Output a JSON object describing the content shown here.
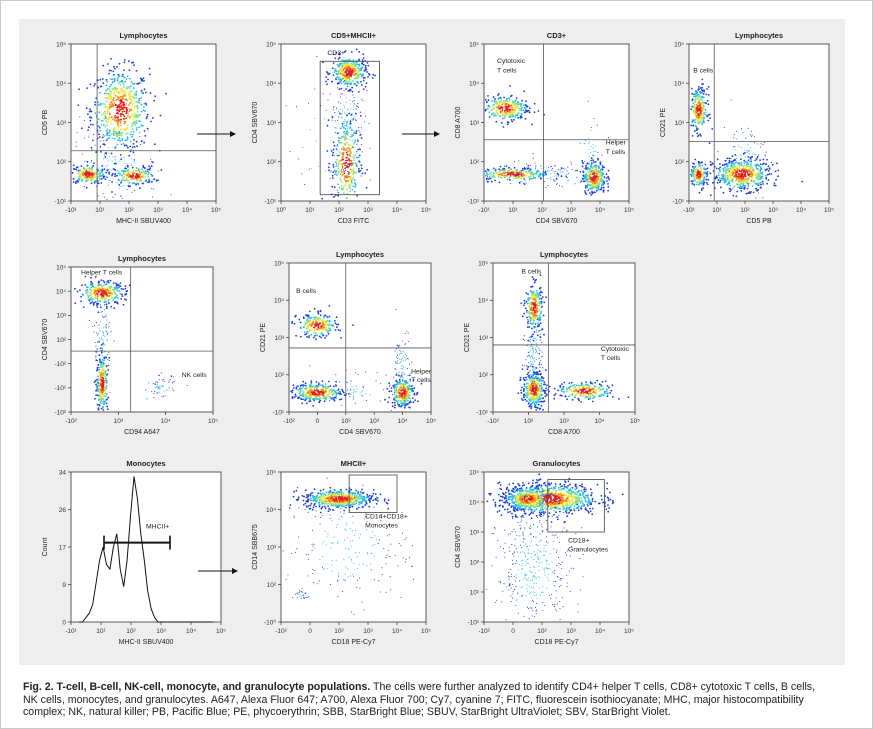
{
  "caption": {
    "label": "Fig. 2. T-cell, B-cell, NK-cell, monocyte, and granulocyte populations.",
    "text": " The cells were further analyzed to identify CD4+ helper T cells, CD8+ cytotoxic T cells, B cells, NK cells, monocytes, and granulocytes. A647, Alexa Fluor 647; A700, Alexa Fluor 700; Cy7, cyanine 7; FITC, fluorescein isothiocyanate; MHC, major histocompatibility complex; NK, natural killer; PB, Pacific Blue; PE, phycoerythrin; SBB, StarBright Blue; SBUV, StarBright UltraViolet; SBV, StarBright Violet."
  },
  "palette": [
    "#1a3fd6",
    "#22b8f0",
    "#7be38a",
    "#f6e43a",
    "#f08a1c",
    "#e3201c"
  ],
  "panels": [
    {
      "id": "p1",
      "title": "Lymphocytes",
      "xlabel": "MHC-II SBUV400",
      "ylabel": "CD5 PB",
      "xticks": [
        "-10¹",
        "10¹",
        "10²",
        "10³",
        "10⁴",
        "10⁵"
      ],
      "yticks": [
        "-10¹",
        "10²",
        "10³",
        "10⁴",
        "10⁵"
      ],
      "gates": [
        {
          "type": "vline",
          "v": 0.18
        },
        {
          "type": "hline",
          "v": 0.32
        }
      ],
      "populations": [
        {
          "cx": 0.34,
          "cy": 0.58,
          "sx": 0.1,
          "sy": 0.13,
          "n": 600
        },
        {
          "cx": 0.12,
          "cy": 0.17,
          "sx": 0.06,
          "sy": 0.03,
          "n": 200
        },
        {
          "cx": 0.44,
          "cy": 0.16,
          "sx": 0.07,
          "sy": 0.03,
          "n": 180
        },
        {
          "cx": 0.3,
          "cy": 0.2,
          "sx": 0.15,
          "sy": 0.15,
          "n": 160,
          "sparse": true
        }
      ],
      "labels": []
    },
    {
      "id": "p2",
      "title": "CD5+MHCII+",
      "xlabel": "CD3 FITC",
      "ylabel": "CD4 SBV670",
      "xticks": [
        "10⁰",
        "10¹",
        "10²",
        "10³",
        "10⁴",
        "10⁵"
      ],
      "yticks": [
        "-10¹",
        "10²",
        "10³",
        "10⁴",
        "10⁵"
      ],
      "gates": [
        {
          "type": "rect",
          "x0": 0.27,
          "x1": 0.68,
          "y0": 0.04,
          "y1": 0.89
        }
      ],
      "populations": [
        {
          "cx": 0.47,
          "cy": 0.82,
          "sx": 0.06,
          "sy": 0.05,
          "n": 350
        },
        {
          "cx": 0.45,
          "cy": 0.24,
          "sx": 0.05,
          "sy": 0.15,
          "n": 300
        },
        {
          "cx": 0.45,
          "cy": 0.5,
          "sx": 0.06,
          "sy": 0.2,
          "n": 180,
          "sparse": true
        },
        {
          "cx": 0.3,
          "cy": 0.35,
          "sx": 0.15,
          "sy": 0.2,
          "n": 40,
          "sparse": true
        }
      ],
      "labels": [
        {
          "text": "CD3+",
          "x": 0.32,
          "y": 0.93
        }
      ]
    },
    {
      "id": "p3",
      "title": "CD3+",
      "xlabel": "CD4 SBV670",
      "ylabel": "CD8 A700",
      "xticks": [
        "-10¹",
        "10¹",
        "10²",
        "10³",
        "10⁴",
        "10⁵"
      ],
      "yticks": [
        "-10¹",
        "10²",
        "10³",
        "10⁴",
        "10⁵"
      ],
      "gates": [
        {
          "type": "vline",
          "v": 0.41
        },
        {
          "type": "hline",
          "v": 0.39
        }
      ],
      "populations": [
        {
          "cx": 0.15,
          "cy": 0.59,
          "sx": 0.08,
          "sy": 0.04,
          "n": 280
        },
        {
          "cx": 0.76,
          "cy": 0.15,
          "sx": 0.04,
          "sy": 0.05,
          "n": 320
        },
        {
          "cx": 0.2,
          "cy": 0.17,
          "sx": 0.13,
          "sy": 0.02,
          "n": 250
        },
        {
          "cx": 0.4,
          "cy": 0.17,
          "sx": 0.15,
          "sy": 0.04,
          "n": 120,
          "sparse": true
        },
        {
          "cx": 0.74,
          "cy": 0.33,
          "sx": 0.04,
          "sy": 0.12,
          "n": 50,
          "sparse": true
        }
      ],
      "labels": [
        {
          "text": "Cytotoxic",
          "x": 0.09,
          "y": 0.88
        },
        {
          "text": "T cells",
          "x": 0.09,
          "y": 0.82
        },
        {
          "text": "Helper",
          "x": 0.84,
          "y": 0.36
        },
        {
          "text": "T cells",
          "x": 0.84,
          "y": 0.3
        }
      ]
    },
    {
      "id": "p4",
      "title": "Lymphocytes",
      "xlabel": "CD5 PB",
      "ylabel": "CD21 PE",
      "xticks": [
        "-10¹",
        "10¹",
        "10²",
        "10³",
        "10⁴",
        "10⁵"
      ],
      "yticks": [
        "-10¹",
        "10²",
        "10³",
        "10⁴",
        "10⁵"
      ],
      "gates": [
        {
          "type": "vline",
          "v": 0.18
        },
        {
          "type": "hline",
          "v": 0.38
        }
      ],
      "populations": [
        {
          "cx": 0.07,
          "cy": 0.58,
          "sx": 0.03,
          "sy": 0.07,
          "n": 250
        },
        {
          "cx": 0.38,
          "cy": 0.17,
          "sx": 0.1,
          "sy": 0.05,
          "n": 500
        },
        {
          "cx": 0.07,
          "cy": 0.17,
          "sx": 0.03,
          "sy": 0.04,
          "n": 150
        },
        {
          "cx": 0.4,
          "cy": 0.28,
          "sx": 0.08,
          "sy": 0.12,
          "n": 100,
          "sparse": true
        }
      ],
      "labels": [
        {
          "text": "B cells",
          "x": 0.03,
          "y": 0.82
        }
      ]
    },
    {
      "id": "p5",
      "title": "Lymphocytes",
      "xlabel": "CD94 A647",
      "ylabel": "CD4 SBV670",
      "xticks": [
        "-10²",
        "10³",
        "10⁴",
        "10⁵"
      ],
      "yticks": [
        "-10²",
        "-10¹",
        "-10²",
        "10²",
        "10³",
        "10⁴",
        "10⁵"
      ],
      "gates": [
        {
          "type": "vline",
          "v": 0.42
        },
        {
          "type": "hline",
          "v": 0.42
        }
      ],
      "populations": [
        {
          "cx": 0.22,
          "cy": 0.82,
          "sx": 0.08,
          "sy": 0.04,
          "n": 300
        },
        {
          "cx": 0.22,
          "cy": 0.2,
          "sx": 0.02,
          "sy": 0.1,
          "n": 250
        },
        {
          "cx": 0.22,
          "cy": 0.5,
          "sx": 0.03,
          "sy": 0.15,
          "n": 100,
          "sparse": true
        },
        {
          "cx": 0.64,
          "cy": 0.17,
          "sx": 0.05,
          "sy": 0.04,
          "n": 60,
          "sparse": true
        }
      ],
      "labels": [
        {
          "text": "Helper T cells",
          "x": 0.07,
          "y": 0.95
        },
        {
          "text": "NK cells",
          "x": 0.78,
          "y": 0.24
        }
      ]
    },
    {
      "id": "p6",
      "title": "Lymphocytes",
      "xlabel": "CD4 SBV670",
      "ylabel": "CD21 PE",
      "xticks": [
        "-10²",
        "0",
        "10²",
        "10³",
        "10⁴",
        "10⁵"
      ],
      "yticks": [
        "-10¹",
        "10²",
        "10³",
        "10⁴",
        "10⁵"
      ],
      "gates": [
        {
          "type": "vline",
          "v": 0.4
        },
        {
          "type": "hline",
          "v": 0.43
        }
      ],
      "populations": [
        {
          "cx": 0.2,
          "cy": 0.58,
          "sx": 0.07,
          "sy": 0.04,
          "n": 230
        },
        {
          "cx": 0.2,
          "cy": 0.13,
          "sx": 0.09,
          "sy": 0.03,
          "n": 320
        },
        {
          "cx": 0.8,
          "cy": 0.13,
          "sx": 0.04,
          "sy": 0.05,
          "n": 260
        },
        {
          "cx": 0.8,
          "cy": 0.3,
          "sx": 0.03,
          "sy": 0.13,
          "n": 90,
          "sparse": true
        },
        {
          "cx": 0.5,
          "cy": 0.15,
          "sx": 0.15,
          "sy": 0.05,
          "n": 80,
          "sparse": true
        }
      ],
      "labels": [
        {
          "text": "B cells",
          "x": 0.05,
          "y": 0.8
        },
        {
          "text": "Helper",
          "x": 0.86,
          "y": 0.26
        },
        {
          "text": "T cells",
          "x": 0.86,
          "y": 0.2
        }
      ]
    },
    {
      "id": "p7",
      "title": "Lymphocytes",
      "xlabel": "CD8 A700",
      "ylabel": "CD21 PE",
      "xticks": [
        "-10²",
        "10²",
        "10³",
        "10⁴",
        "10⁵"
      ],
      "yticks": [
        "-10¹",
        "10²",
        "10³",
        "10⁴",
        "10⁵"
      ],
      "gates": [
        {
          "type": "vline",
          "v": 0.39
        },
        {
          "type": "hline",
          "v": 0.45
        }
      ],
      "populations": [
        {
          "cx": 0.29,
          "cy": 0.7,
          "sx": 0.03,
          "sy": 0.08,
          "n": 250
        },
        {
          "cx": 0.29,
          "cy": 0.15,
          "sx": 0.04,
          "sy": 0.06,
          "n": 330
        },
        {
          "cx": 0.29,
          "cy": 0.4,
          "sx": 0.03,
          "sy": 0.13,
          "n": 150,
          "sparse": true
        },
        {
          "cx": 0.65,
          "cy": 0.14,
          "sx": 0.1,
          "sy": 0.03,
          "n": 220
        }
      ],
      "labels": [
        {
          "text": "B cells",
          "x": 0.2,
          "y": 0.93
        },
        {
          "text": "Cytotoxic",
          "x": 0.76,
          "y": 0.41
        },
        {
          "text": "T cells",
          "x": 0.76,
          "y": 0.35
        }
      ]
    },
    {
      "id": "p9",
      "title": "MHCII+",
      "xlabel": "CD18 PE-Cy7",
      "ylabel": "CD14 SBB675",
      "xticks": [
        "-10²",
        "0",
        "10²",
        "10³",
        "10⁴",
        "10⁵"
      ],
      "yticks": [
        "-10⁰",
        "10²",
        "10³",
        "10⁴",
        "10⁵"
      ],
      "gates": [
        {
          "type": "rect",
          "x0": 0.47,
          "x1": 0.8,
          "y0": 0.73,
          "y1": 0.98
        }
      ],
      "populations": [
        {
          "cx": 0.4,
          "cy": 0.82,
          "sx": 0.12,
          "sy": 0.03,
          "n": 550
        },
        {
          "cx": 0.45,
          "cy": 0.5,
          "sx": 0.22,
          "sy": 0.2,
          "n": 220,
          "sparse": true
        },
        {
          "cx": 0.14,
          "cy": 0.18,
          "sx": 0.03,
          "sy": 0.02,
          "n": 30,
          "sparse": true
        }
      ],
      "labels": [
        {
          "text": "CD14+CD18+",
          "x": 0.58,
          "y": 0.69
        },
        {
          "text": "Monocytes",
          "x": 0.58,
          "y": 0.63
        }
      ]
    },
    {
      "id": "p10",
      "title": "Granulocytes",
      "xlabel": "CD18 PE-Cy7",
      "ylabel": "CD4 SBV670",
      "xticks": [
        "-10²",
        "0",
        "10²",
        "10³",
        "10⁴",
        "10⁵"
      ],
      "yticks": [
        "-10¹",
        "10¹",
        "10²",
        "10³",
        "10⁴",
        "10⁵"
      ],
      "gates": [
        {
          "type": "rect",
          "x0": 0.44,
          "x1": 0.83,
          "y0": 0.6,
          "y1": 0.95
        }
      ],
      "populations": [
        {
          "cx": 0.45,
          "cy": 0.82,
          "sx": 0.17,
          "sy": 0.05,
          "n": 900
        },
        {
          "cx": 0.3,
          "cy": 0.82,
          "sx": 0.08,
          "sy": 0.04,
          "n": 250
        },
        {
          "cx": 0.35,
          "cy": 0.35,
          "sx": 0.13,
          "sy": 0.2,
          "n": 400,
          "sparse": true
        }
      ],
      "labels": [
        {
          "text": "CD18+",
          "x": 0.58,
          "y": 0.53
        },
        {
          "text": "Granulocytes",
          "x": 0.58,
          "y": 0.47
        }
      ]
    }
  ],
  "histogram": {
    "title": "Monocytes",
    "xlabel": "MHC-II SBUV400",
    "ylabel": "Count",
    "xticks": [
      "-10¹",
      "10¹",
      "10²",
      "10³",
      "10⁴",
      "10⁵"
    ],
    "yticks": [
      "0",
      "9",
      "17",
      "26",
      "34"
    ],
    "ylim": [
      0,
      34
    ],
    "gate_label": "MHCII+",
    "values": [
      0,
      0,
      1,
      2,
      4,
      9,
      14,
      17,
      13,
      12,
      17,
      20,
      12,
      8,
      14,
      24,
      33,
      28,
      20,
      14,
      7,
      3,
      1,
      0,
      0,
      0,
      0,
      0,
      0,
      0,
      0,
      0,
      0,
      0,
      0,
      0,
      0,
      0,
      0,
      0
    ],
    "gate_from": 0.22,
    "gate_to": 0.66,
    "gate_y": 18
  }
}
